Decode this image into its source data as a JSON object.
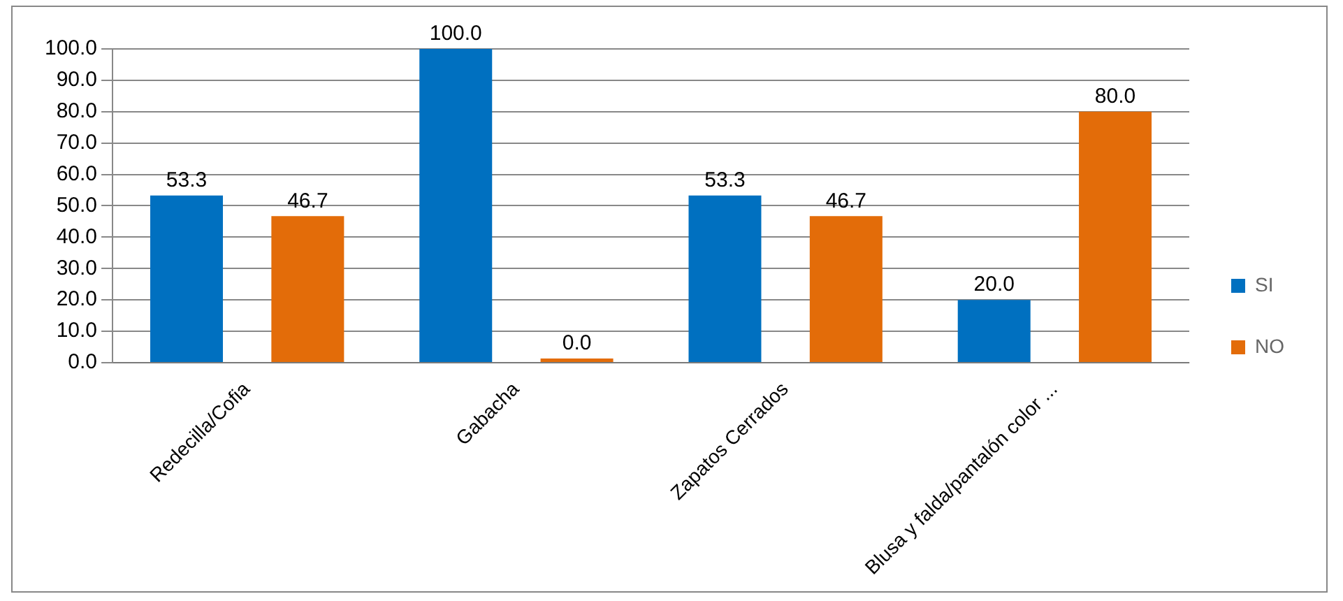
{
  "chart_data": {
    "type": "bar",
    "categories": [
      "Redecilla/Cofia",
      "Gabacha",
      "Zapatos Cerrados",
      "Blusa y falda/pantalón color ..."
    ],
    "series": [
      {
        "name": "SI",
        "color": "#0070c0",
        "values": [
          53.3,
          100,
          53.3,
          20
        ],
        "value_labels": [
          "53.3",
          "100.0",
          "53.3",
          "20.0"
        ]
      },
      {
        "name": "NO",
        "color": "#e36c09",
        "values": [
          46.7,
          0,
          46.7,
          80
        ],
        "value_labels": [
          "46.7",
          "0.0",
          "46.7",
          "80.0"
        ]
      }
    ],
    "ylim": [
      0,
      100
    ],
    "yticks": [
      {
        "value": 0,
        "label": "0.0"
      },
      {
        "value": 10,
        "label": "10.0"
      },
      {
        "value": 20,
        "label": "20.0"
      },
      {
        "value": 30,
        "label": "30.0"
      },
      {
        "value": 40,
        "label": "40.0"
      },
      {
        "value": 50,
        "label": "50.0"
      },
      {
        "value": 60,
        "label": "60.0"
      },
      {
        "value": 70,
        "label": "70.0"
      },
      {
        "value": 80,
        "label": "80.0"
      },
      {
        "value": 90,
        "label": "90.0"
      },
      {
        "value": 100,
        "label": "100.0"
      }
    ],
    "grid": "y",
    "legend": "right"
  }
}
